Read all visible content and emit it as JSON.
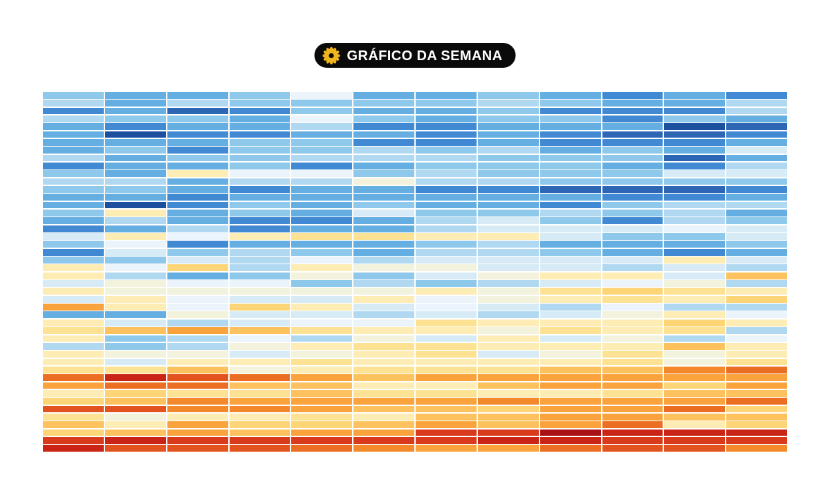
{
  "badge": {
    "label": "GRÁFICO DA SEMANA",
    "icon": "sunburst-flower-icon",
    "bg_color": "#0a0a0a",
    "text_color": "#ffffff",
    "icon_color": "#efb51c"
  },
  "chart_data": {
    "type": "heatmap",
    "title": "GRÁFICO DA SEMANA",
    "xlabel": "",
    "ylabel": "",
    "axes_visible": false,
    "legend_visible": false,
    "grid_lines": "white gaps between cells",
    "color_scale": "diverging blue (top rows, cold/negative) through pale yellow to orange and red (bottom rows, hot/positive)",
    "rows": 46,
    "cols": 12,
    "palette": {
      "W": "#eaf4fa",
      "B0": "#d6ebf6",
      "B1": "#b0d9f1",
      "B2": "#8ec8ea",
      "B3": "#65aee1",
      "B4": "#4189d2",
      "B5": "#2c66b4",
      "B6": "#1d4f9f",
      "Y0": "#f3f2dd",
      "Y1": "#fdecb4",
      "Y2": "#fde294",
      "Y3": "#fdd476",
      "O1": "#fdc25e",
      "O2": "#faa33c",
      "O3": "#f4892c",
      "O4": "#ec6e23",
      "R1": "#e25320",
      "R2": "#d93a1c",
      "R3": "#c92415",
      "R4": "#a81016"
    },
    "grid": [
      [
        "B2",
        "B3",
        "B3",
        "B2",
        "W",
        "B3",
        "B3",
        "B2",
        "B3",
        "B4",
        "B3",
        "B4"
      ],
      [
        "B1",
        "B3",
        "B1",
        "B2",
        "B2",
        "B2",
        "B2",
        "B1",
        "B2",
        "B3",
        "B3",
        "B1"
      ],
      [
        "B4",
        "B3",
        "B5",
        "B4",
        "B2",
        "B3",
        "B3",
        "B2",
        "B4",
        "B4",
        "B4",
        "B1"
      ],
      [
        "B1",
        "B2",
        "B2",
        "B3",
        "W",
        "B2",
        "B3",
        "B2",
        "B2",
        "B4",
        "B2",
        "B3"
      ],
      [
        "B3",
        "B4",
        "B3",
        "B3",
        "B1",
        "B4",
        "B4",
        "B3",
        "B3",
        "B3",
        "B6",
        "B5"
      ],
      [
        "B3",
        "B6",
        "B4",
        "B4",
        "B3",
        "B3",
        "B4",
        "B3",
        "B4",
        "B5",
        "B5",
        "B4"
      ],
      [
        "B3",
        "B3",
        "B3",
        "B2",
        "B2",
        "B4",
        "B4",
        "B3",
        "B4",
        "B4",
        "B4",
        "B3"
      ],
      [
        "B3",
        "B2",
        "B4",
        "B2",
        "B2",
        "B1",
        "B2",
        "B1",
        "B3",
        "B2",
        "B3",
        "B0"
      ],
      [
        "B1",
        "B3",
        "B2",
        "B2",
        "B1",
        "B1",
        "B1",
        "B2",
        "B2",
        "B2",
        "B5",
        "B3"
      ],
      [
        "B4",
        "B3",
        "B3",
        "B2",
        "B4",
        "B3",
        "B2",
        "B2",
        "B2",
        "B3",
        "B4",
        "B1"
      ],
      [
        "B2",
        "B3",
        "Y1",
        "W",
        "W",
        "B2",
        "B1",
        "B2",
        "B2",
        "B2",
        "B0",
        "B0"
      ],
      [
        "B1",
        "B1",
        "B3",
        "B1",
        "B1",
        "Y0",
        "B1",
        "B1",
        "B2",
        "B2",
        "B2",
        "B2"
      ],
      [
        "B2",
        "B2",
        "B3",
        "B4",
        "B3",
        "B3",
        "B4",
        "B4",
        "B5",
        "B5",
        "B5",
        "B4"
      ],
      [
        "B3",
        "B3",
        "B4",
        "B3",
        "B3",
        "B3",
        "B3",
        "B3",
        "B3",
        "B4",
        "B4",
        "B3"
      ],
      [
        "B3",
        "B6",
        "B4",
        "B2",
        "B3",
        "B2",
        "B3",
        "B3",
        "B4",
        "B2",
        "B1",
        "B1"
      ],
      [
        "B2",
        "Y1",
        "B3",
        "B2",
        "B3",
        "B0",
        "B2",
        "B2",
        "B1",
        "B2",
        "B1",
        "B3"
      ],
      [
        "B3",
        "B1",
        "B3",
        "B4",
        "B4",
        "B3",
        "B1",
        "B0",
        "B2",
        "B4",
        "B1",
        "B2"
      ],
      [
        "B4",
        "B3",
        "B1",
        "B4",
        "B3",
        "B3",
        "B1",
        "B0",
        "B0",
        "B0",
        "W",
        "B0"
      ],
      [
        "B0",
        "Y1",
        "W",
        "Y1",
        "Y2",
        "Y2",
        "Y1",
        "Y1",
        "B0",
        "B2",
        "B2",
        "B0"
      ],
      [
        "B2",
        "W",
        "B4",
        "B3",
        "B3",
        "B3",
        "B2",
        "B1",
        "B3",
        "B3",
        "B3",
        "B2"
      ],
      [
        "B4",
        "B0",
        "B2",
        "B1",
        "B2",
        "B3",
        "B1",
        "B1",
        "B2",
        "B3",
        "B4",
        "B3"
      ],
      [
        "B2",
        "B2",
        "B0",
        "B1",
        "W",
        "B1",
        "B0",
        "B0",
        "B0",
        "B0",
        "Y1",
        "B0"
      ],
      [
        "Y1",
        "W",
        "Y3",
        "B1",
        "Y1",
        "Y0",
        "Y0",
        "B0",
        "B0",
        "B1",
        "B0",
        "B1"
      ],
      [
        "Y1",
        "B1",
        "B3",
        "B2",
        "Y0",
        "B2",
        "B0",
        "Y0",
        "Y1",
        "Y1",
        "B0",
        "O1"
      ],
      [
        "B0",
        "Y0",
        "W",
        "W",
        "B2",
        "B1",
        "B2",
        "B1",
        "B0",
        "W",
        "Y0",
        "B1"
      ],
      [
        "Y1",
        "Y0",
        "Y0",
        "Y0",
        "Y0",
        "Y0",
        "Y1",
        "Y0",
        "Y2",
        "Y3",
        "Y2",
        "Y1"
      ],
      [
        "B0",
        "Y1",
        "W",
        "B0",
        "B0",
        "Y1",
        "W",
        "Y0",
        "Y1",
        "Y2",
        "Y1",
        "Y3"
      ],
      [
        "O2",
        "Y1",
        "W",
        "Y3",
        "Y1",
        "B0",
        "W",
        "B0",
        "B1",
        "W",
        "B1",
        "B1"
      ],
      [
        "B3",
        "B3",
        "Y0",
        "B0",
        "B0",
        "B1",
        "B0",
        "B1",
        "B0",
        "Y0",
        "Y1",
        "W"
      ],
      [
        "Y1",
        "B0",
        "B1",
        "B0",
        "W",
        "W",
        "Y2",
        "Y1",
        "Y1",
        "Y1",
        "Y3",
        "Y1"
      ],
      [
        "Y2",
        "O1",
        "O2",
        "O1",
        "Y2",
        "Y1",
        "Y1",
        "Y0",
        "Y2",
        "Y1",
        "Y2",
        "B1"
      ],
      [
        "Y1",
        "B2",
        "B1",
        "W",
        "B1",
        "Y0",
        "B0",
        "Y1",
        "B0",
        "Y0",
        "B1",
        "W"
      ],
      [
        "B1",
        "B2",
        "B1",
        "Y0",
        "Y1",
        "Y2",
        "Y2",
        "Y1",
        "Y1",
        "Y1",
        "O1",
        "Y1"
      ],
      [
        "Y1",
        "Y0",
        "Y0",
        "B0",
        "Y0",
        "Y1",
        "Y2",
        "B0",
        "Y0",
        "Y2",
        "Y0",
        "Y1"
      ],
      [
        "Y1",
        "B0",
        "Y1",
        "Y1",
        "Y2",
        "Y1",
        "Y1",
        "Y1",
        "Y1",
        "Y2",
        "Y0",
        "Y2"
      ],
      [
        "Y2",
        "Y2",
        "O1",
        "Y0",
        "Y1",
        "Y2",
        "Y2",
        "Y2",
        "O1",
        "O1",
        "O3",
        "O4"
      ],
      [
        "O4",
        "R3",
        "R1",
        "O4",
        "O2",
        "O1",
        "O2",
        "O2",
        "O2",
        "O2",
        "O2",
        "O2"
      ],
      [
        "O2",
        "O4",
        "O4",
        "O1",
        "O1",
        "Y1",
        "Y1",
        "O1",
        "O2",
        "O2",
        "Y3",
        "O2"
      ],
      [
        "Y1",
        "Y3",
        "Y2",
        "Y2",
        "O1",
        "Y2",
        "Y2",
        "Y1",
        "Y1",
        "Y2",
        "O1",
        "O1"
      ],
      [
        "Y3",
        "O1",
        "O3",
        "O2",
        "O2",
        "O2",
        "O2",
        "O3",
        "O2",
        "O2",
        "O2",
        "O4"
      ],
      [
        "R1",
        "R1",
        "O3",
        "O3",
        "O2",
        "O1",
        "O1",
        "Y3",
        "O2",
        "O2",
        "O4",
        "Y3"
      ],
      [
        "Y2",
        "Y0",
        "Y1",
        "Y1",
        "Y2",
        "Y1",
        "O1",
        "O1",
        "O2",
        "O2",
        "O1",
        "O1"
      ],
      [
        "O1",
        "Y1",
        "O2",
        "Y3",
        "Y3",
        "O1",
        "O2",
        "O1",
        "O2",
        "O4",
        "Y1",
        "Y3"
      ],
      [
        "Y3",
        "O1",
        "O2",
        "O1",
        "O2",
        "O2",
        "R2",
        "R2",
        "R4",
        "R3",
        "R3",
        "R3"
      ],
      [
        "R2",
        "R3",
        "R2",
        "R2",
        "R2",
        "R2",
        "R2",
        "R3",
        "R3",
        "R2",
        "R2",
        "R2"
      ],
      [
        "R3",
        "R1",
        "R1",
        "R1",
        "O4",
        "O3",
        "O2",
        "O2",
        "O4",
        "R1",
        "R1",
        "O3"
      ]
    ]
  }
}
